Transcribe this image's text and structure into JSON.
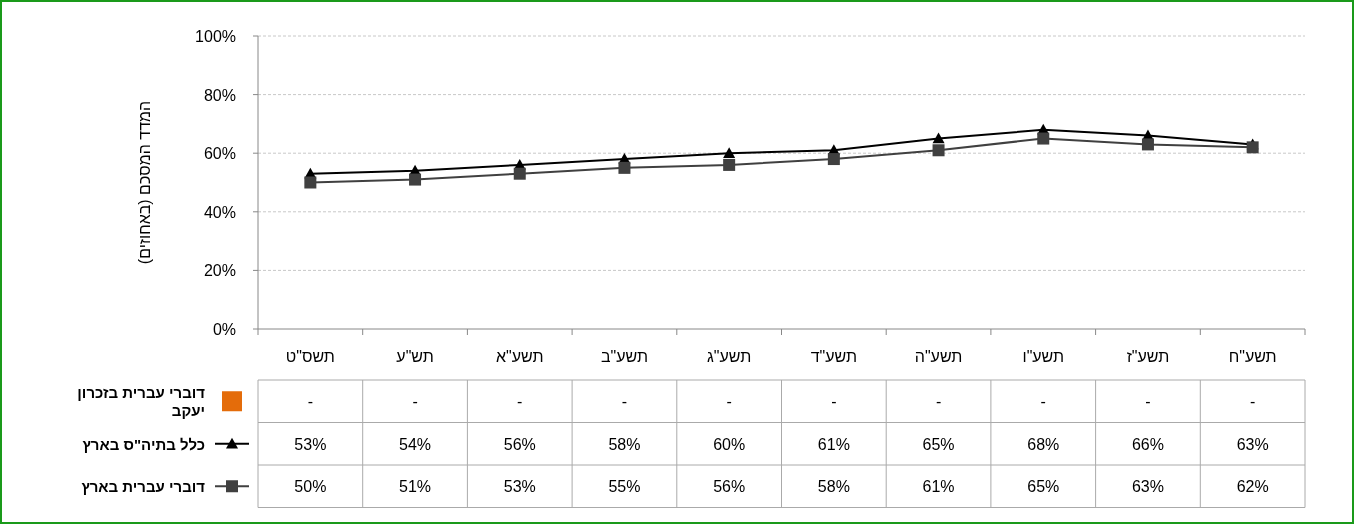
{
  "chart_data": {
    "type": "line",
    "ylabel": "המדד המסכם (באחוזים)",
    "categories": [
      "תשס\"ט",
      "תש\"ע",
      "תשע\"א",
      "תשע\"ב",
      "תשע\"ג",
      "תשע\"ד",
      "תשע\"ה",
      "תשע\"ו",
      "תשע\"ז",
      "תשע\"ח"
    ],
    "series": [
      {
        "name": "דוברי עברית בזכרון יעקב",
        "color": "#e46c0a",
        "marker": "square",
        "values": [
          null,
          null,
          null,
          null,
          null,
          null,
          null,
          null,
          null,
          null
        ],
        "value_labels": [
          "-",
          "-",
          "-",
          "-",
          "-",
          "-",
          "-",
          "-",
          "-",
          "-"
        ]
      },
      {
        "name": "כלל בתיה\"ס בארץ",
        "color": "#000000",
        "marker": "triangle",
        "values": [
          53,
          54,
          56,
          58,
          60,
          61,
          65,
          68,
          66,
          63
        ],
        "value_labels": [
          "53%",
          "54%",
          "56%",
          "58%",
          "60%",
          "61%",
          "65%",
          "68%",
          "66%",
          "63%"
        ]
      },
      {
        "name": "דוברי עברית בארץ",
        "color": "#404040",
        "marker": "square",
        "values": [
          50,
          51,
          53,
          55,
          56,
          58,
          61,
          65,
          63,
          62
        ],
        "value_labels": [
          "50%",
          "51%",
          "53%",
          "55%",
          "56%",
          "58%",
          "61%",
          "65%",
          "63%",
          "62%"
        ]
      }
    ],
    "ylim": [
      0,
      100
    ],
    "yticks": [
      {
        "value": 0,
        "label": "0%"
      },
      {
        "value": 20,
        "label": "20%"
      },
      {
        "value": 40,
        "label": "40%"
      },
      {
        "value": 60,
        "label": "60%"
      },
      {
        "value": 80,
        "label": "80%"
      },
      {
        "value": 100,
        "label": "100%"
      }
    ],
    "grid": "y",
    "legend": "bottom left",
    "line_style": "solid"
  }
}
